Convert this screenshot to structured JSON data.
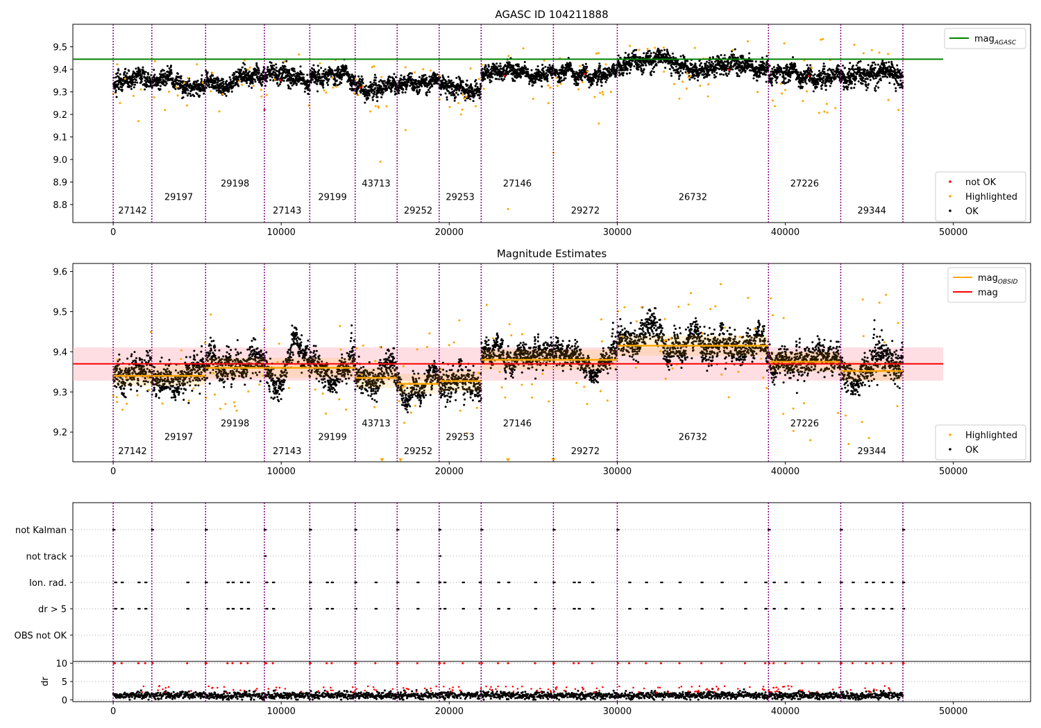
{
  "chart_data": [
    {
      "id": "top",
      "type": "scatter",
      "title": "AGASC ID 104211888",
      "xlim": [
        -2400,
        54600
      ],
      "ylim": [
        8.72,
        9.6
      ],
      "xticks": [
        0,
        10000,
        20000,
        30000,
        40000,
        50000
      ],
      "xtick_labels": [
        "0",
        "10000",
        "20000",
        "30000",
        "40000",
        "50000"
      ],
      "yticks": [
        8.8,
        8.9,
        9.0,
        9.1,
        9.2,
        9.3,
        9.4,
        9.5
      ],
      "ytick_labels": [
        "8.8",
        "8.9",
        "9.0",
        "9.1",
        "9.2",
        "9.3",
        "9.4",
        "9.5"
      ],
      "mag_agasc": 9.445,
      "mag_agasc_xmax": 49400,
      "legend_lines": [
        {
          "label": "mag",
          "sub": "AGASC",
          "color": "#008000"
        }
      ],
      "legend_points": [
        {
          "label": "not OK",
          "color": "#ff0000"
        },
        {
          "label": "Highlighted",
          "color": "#ffa500"
        },
        {
          "label": "OK",
          "color": "#000000"
        }
      ],
      "segments": [
        {
          "obsid": "27142",
          "x0": 0,
          "x1": 2300,
          "mag": 9.34,
          "spread": 0.05,
          "label_y": 8.76
        },
        {
          "obsid": "29197",
          "x0": 2300,
          "x1": 5500,
          "mag": 9.33,
          "spread": 0.05,
          "label_y": 8.82
        },
        {
          "obsid": "29198",
          "x0": 5500,
          "x1": 9000,
          "mag": 9.36,
          "spread": 0.05,
          "label_y": 8.88
        },
        {
          "obsid": "27143",
          "x0": 9000,
          "x1": 11700,
          "mag": 9.36,
          "spread": 0.05,
          "label_y": 8.76
        },
        {
          "obsid": "29199",
          "x0": 11700,
          "x1": 14400,
          "mag": 9.36,
          "spread": 0.05,
          "label_y": 8.82
        },
        {
          "obsid": "43713",
          "x0": 14400,
          "x1": 16900,
          "mag": 9.32,
          "spread": 0.05,
          "label_y": 8.88
        },
        {
          "obsid": "29252",
          "x0": 16900,
          "x1": 19400,
          "mag": 9.32,
          "spread": 0.04,
          "label_y": 8.76
        },
        {
          "obsid": "29253",
          "x0": 19400,
          "x1": 21900,
          "mag": 9.33,
          "spread": 0.05,
          "label_y": 8.82
        },
        {
          "obsid": "27146",
          "x0": 21900,
          "x1": 26200,
          "mag": 9.39,
          "spread": 0.04,
          "label_y": 8.88
        },
        {
          "obsid": "29272",
          "x0": 26200,
          "x1": 30000,
          "mag": 9.38,
          "spread": 0.04,
          "label_y": 8.76
        },
        {
          "obsid": "26732",
          "x0": 30000,
          "x1": 39000,
          "mag": 9.42,
          "spread": 0.05,
          "label_y": 8.82
        },
        {
          "obsid": "27226",
          "x0": 39000,
          "x1": 43300,
          "mag": 9.37,
          "spread": 0.05,
          "label_y": 8.88
        },
        {
          "obsid": "29344",
          "x0": 43300,
          "x1": 47000,
          "mag": 9.36,
          "spread": 0.06,
          "label_y": 8.76
        }
      ],
      "outliers": [
        {
          "x": 1500,
          "y": 9.17
        },
        {
          "x": 9000,
          "y": 9.22
        },
        {
          "x": 15900,
          "y": 8.99
        },
        {
          "x": 17400,
          "y": 9.13
        },
        {
          "x": 20700,
          "y": 9.2
        },
        {
          "x": 23500,
          "y": 8.78
        },
        {
          "x": 26200,
          "y": 9.03
        },
        {
          "x": 25900,
          "y": 9.25
        },
        {
          "x": 28900,
          "y": 9.16
        },
        {
          "x": 33700,
          "y": 9.27
        },
        {
          "x": 35400,
          "y": 9.28
        }
      ]
    },
    {
      "id": "middle",
      "type": "scatter",
      "title": "Magnitude Estimates",
      "xlim": [
        -2400,
        54600
      ],
      "ylim": [
        9.126,
        9.62
      ],
      "xticks": [
        0,
        10000,
        20000,
        30000,
        40000,
        50000
      ],
      "xtick_labels": [
        "0",
        "10000",
        "20000",
        "30000",
        "40000",
        "50000"
      ],
      "yticks": [
        9.2,
        9.3,
        9.4,
        9.5,
        9.6
      ],
      "ytick_labels": [
        "9.2",
        "9.3",
        "9.4",
        "9.5",
        "9.6"
      ],
      "mag": 9.37,
      "mag_band": [
        9.328,
        9.411
      ],
      "mag_xmax": 49400,
      "legend_lines": [
        {
          "label": "mag",
          "sub": "OBSID",
          "color": "#ffa500"
        },
        {
          "label": "mag",
          "sub": "",
          "color": "#ff0000"
        }
      ],
      "legend_points": [
        {
          "label": "Highlighted",
          "color": "#ffa500"
        },
        {
          "label": "OK",
          "color": "#000000"
        }
      ],
      "mag_obsid": [
        9.34,
        9.34,
        9.36,
        9.36,
        9.36,
        9.335,
        9.32,
        9.327,
        9.38,
        9.38,
        9.415,
        9.375,
        9.352
      ],
      "label_y": [
        9.145,
        9.18,
        9.214,
        9.145,
        9.18,
        9.214,
        9.145,
        9.18,
        9.214,
        9.145,
        9.18,
        9.214,
        9.145
      ],
      "clipped_markers": [
        16000,
        17100,
        23500,
        26200
      ]
    },
    {
      "id": "flags",
      "type": "scatter",
      "categories": [
        "not Kalman",
        "not track",
        "Ion. rad.",
        "dr > 5",
        "OBS not OK"
      ],
      "xlim": [
        -2400,
        54600
      ],
      "flags": {
        "not Kalman": [
          0,
          2300,
          5500,
          9000,
          11700,
          14400,
          16900,
          19400,
          21900,
          26200,
          30000,
          39000,
          43300,
          47000
        ],
        "not track": [
          9000,
          19400
        ],
        "Ion. rad.": [
          100,
          500,
          1500,
          1900,
          4400,
          5500,
          6800,
          7100,
          7600,
          8000,
          9100,
          9500,
          11700,
          12700,
          13000,
          14400,
          15600,
          16900,
          18100,
          19400,
          19700,
          20800,
          21800,
          22900,
          23500,
          25100,
          26200,
          27400,
          27700,
          28500,
          30700,
          31700,
          32600,
          33700,
          35000,
          36200,
          37600,
          38800,
          39300,
          40000,
          41000,
          42000,
          43300,
          44000,
          44800,
          45200,
          45800,
          46300,
          47000
        ],
        "dr > 5": [
          100,
          500,
          1500,
          1900,
          4400,
          5500,
          6800,
          7100,
          7600,
          8000,
          9100,
          9500,
          11700,
          12700,
          13000,
          14400,
          15600,
          16900,
          18100,
          19400,
          19700,
          20800,
          21800,
          22900,
          23500,
          25100,
          26200,
          27400,
          27700,
          28500,
          30700,
          31700,
          32600,
          33700,
          35000,
          36200,
          37600,
          38800,
          39300,
          40000,
          41000,
          42000,
          43300,
          44000,
          44800,
          45200,
          45800,
          46300,
          47000
        ],
        "OBS not OK": []
      }
    },
    {
      "id": "dr",
      "type": "scatter",
      "ylabel": "dr",
      "xlim": [
        -2400,
        54600
      ],
      "ylim": [
        -0.5,
        10.5
      ],
      "yticks": [
        0,
        5,
        10
      ],
      "ytick_labels": [
        "0",
        "5",
        "10"
      ],
      "xticks": [
        0,
        10000,
        20000,
        30000,
        40000,
        50000
      ],
      "xtick_labels": [
        "0",
        "10000",
        "20000",
        "30000",
        "40000",
        "50000"
      ],
      "typical_dr": 1.2,
      "saturated_dr": 10
    }
  ]
}
